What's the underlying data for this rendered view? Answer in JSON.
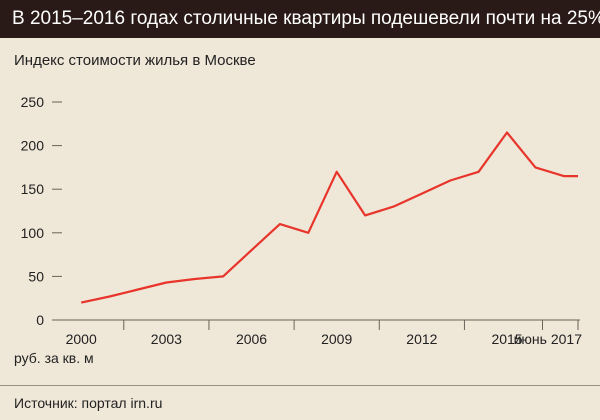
{
  "header": {
    "title": "В 2015–2016 годах столичные квартиры подешевели почти на 25%",
    "subtitle": "Индекс стоимости жилья в Москве",
    "unit": "руб. за кв. м",
    "source": "Источник: портал irn.ru"
  },
  "chart_data": {
    "type": "line",
    "title": "В 2015–2016 годах столичные квартиры подешевели почти на 25%",
    "subtitle": "Индекс стоимости жилья в Москве",
    "ylabel": "руб. за кв. м",
    "xlabel": "",
    "ylim": [
      0,
      250
    ],
    "yticks": [
      0,
      50,
      100,
      150,
      200,
      250
    ],
    "xlim": [
      1999.5,
      2017.5
    ],
    "xticks": [
      {
        "x": 2000,
        "label": "2000"
      },
      {
        "x": 2003,
        "label": "2003"
      },
      {
        "x": 2006,
        "label": "2006"
      },
      {
        "x": 2009,
        "label": "2009"
      },
      {
        "x": 2012,
        "label": "2012"
      },
      {
        "x": 2015,
        "label": "2015"
      },
      {
        "x": 2017.5,
        "label": "июнь 2017"
      }
    ],
    "grid": false,
    "series": [
      {
        "color": "#e8352b",
        "x": [
          2000,
          2001,
          2002,
          2003,
          2004,
          2005,
          2006,
          2007,
          2008,
          2009,
          2010,
          2011,
          2012,
          2013,
          2014,
          2015,
          2016,
          2017,
          2017.5
        ],
        "values": [
          20,
          27,
          35,
          43,
          47,
          50,
          80,
          110,
          100,
          170,
          120,
          130,
          145,
          160,
          170,
          215,
          175,
          165,
          165
        ]
      }
    ]
  }
}
